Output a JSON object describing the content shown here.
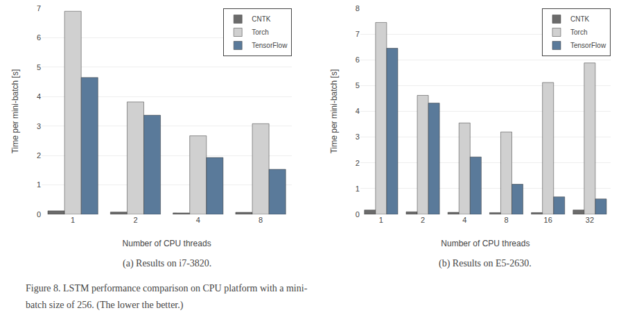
{
  "chart_data": [
    {
      "type": "bar",
      "subtitle": "(a) Results on i7-3820.",
      "xlabel": "Number of CPU threads",
      "ylabel": "Time per mini-batch [s]",
      "categories": [
        "1",
        "2",
        "4",
        "8"
      ],
      "series": [
        {
          "name": "CNTK",
          "color": "#6b6b6b",
          "values": [
            0.12,
            0.08,
            0.05,
            0.07
          ]
        },
        {
          "name": "Torch",
          "color": "#d0d0d0",
          "values": [
            6.9,
            3.82,
            2.67,
            3.08
          ]
        },
        {
          "name": "TensorFlow",
          "color": "#5a7a9a",
          "values": [
            4.65,
            3.37,
            1.93,
            1.53
          ]
        }
      ],
      "ylim": [
        0,
        7
      ],
      "yticks": [
        0,
        1,
        2,
        3,
        4,
        5,
        6,
        7
      ],
      "grid": true,
      "legend": "upper right"
    },
    {
      "type": "bar",
      "subtitle": "(b) Results on E5-2630.",
      "xlabel": "Number of CPU threads",
      "ylabel": "Time per mini-batch [s]",
      "categories": [
        "1",
        "2",
        "4",
        "8",
        "16",
        "32"
      ],
      "series": [
        {
          "name": "CNTK",
          "color": "#6b6b6b",
          "values": [
            0.17,
            0.1,
            0.08,
            0.07,
            0.07,
            0.17
          ]
        },
        {
          "name": "Torch",
          "color": "#d0d0d0",
          "values": [
            7.45,
            4.62,
            3.55,
            3.2,
            5.12,
            5.88
          ]
        },
        {
          "name": "TensorFlow",
          "color": "#5a7a9a",
          "values": [
            6.45,
            4.32,
            2.23,
            1.17,
            0.68,
            0.6
          ]
        }
      ],
      "ylim": [
        0,
        8
      ],
      "yticks": [
        0,
        1,
        2,
        3,
        4,
        5,
        6,
        7,
        8
      ],
      "grid": true,
      "legend": "upper right"
    }
  ],
  "annotations": [
    "Figure 8. LSTM performance comparison on CPU platform with a mini-",
    "batch size of 256. (The lower the better.)"
  ]
}
